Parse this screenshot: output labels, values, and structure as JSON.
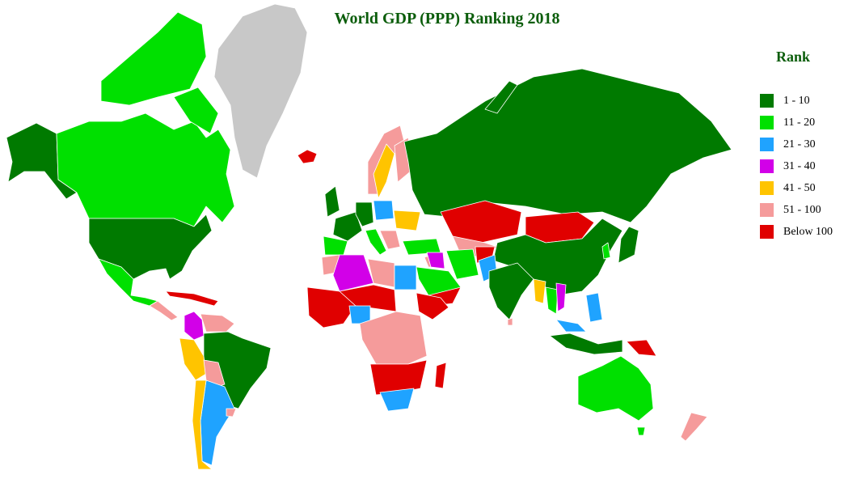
{
  "title": "World GDP (PPP) Ranking 2018",
  "legend": {
    "title": "Rank",
    "items": [
      {
        "label": "1 - 10",
        "color": "#007a00"
      },
      {
        "label": "11 - 20",
        "color": "#00e000"
      },
      {
        "label": "21 - 30",
        "color": "#1fa3ff"
      },
      {
        "label": "31 - 40",
        "color": "#d200e8"
      },
      {
        "label": "41 - 50",
        "color": "#ffc400"
      },
      {
        "label": "51 - 100",
        "color": "#f59b9b"
      },
      {
        "label": "Below 100",
        "color": "#e00000"
      }
    ]
  },
  "colors": {
    "no_data": "#c8c8c8",
    "border": "#ffffff",
    "background": "#ffffff"
  },
  "regions": [
    {
      "name": "United States",
      "rank_band": "1 - 10"
    },
    {
      "name": "Canada",
      "rank_band": "11 - 20"
    },
    {
      "name": "Alaska",
      "rank_band": "1 - 10"
    },
    {
      "name": "Mexico",
      "rank_band": "11 - 20"
    },
    {
      "name": "Greenland",
      "rank_band": "no data"
    },
    {
      "name": "Brazil",
      "rank_band": "1 - 10"
    },
    {
      "name": "Argentina",
      "rank_band": "21 - 30"
    },
    {
      "name": "Russia",
      "rank_band": "1 - 10"
    },
    {
      "name": "China",
      "rank_band": "1 - 10"
    },
    {
      "name": "India",
      "rank_band": "1 - 10"
    },
    {
      "name": "Australia",
      "rank_band": "11 - 20"
    },
    {
      "name": "Japan",
      "rank_band": "1 - 10"
    },
    {
      "name": "Kazakhstan",
      "rank_band": "Below 100"
    },
    {
      "name": "Mongolia",
      "rank_band": "Below 100"
    },
    {
      "name": "Saudi Arabia",
      "rank_band": "11 - 20"
    },
    {
      "name": "Egypt",
      "rank_band": "21 - 30"
    },
    {
      "name": "Algeria",
      "rank_band": "31 - 40"
    },
    {
      "name": "Nigeria",
      "rank_band": "21 - 30"
    },
    {
      "name": "South Africa",
      "rank_band": "21 - 30"
    },
    {
      "name": "Colombia",
      "rank_band": "31 - 40"
    },
    {
      "name": "Peru",
      "rank_band": "41 - 50"
    },
    {
      "name": "Chile",
      "rank_band": "41 - 50"
    },
    {
      "name": "Iran",
      "rank_band": "11 - 20"
    },
    {
      "name": "Pakistan",
      "rank_band": "21 - 30"
    },
    {
      "name": "Indonesia",
      "rank_band": "1 - 10"
    },
    {
      "name": "Thailand",
      "rank_band": "11 - 20"
    },
    {
      "name": "Philippines",
      "rank_band": "21 - 30"
    },
    {
      "name": "Madagascar",
      "rank_band": "Below 100"
    },
    {
      "name": "Papua New Guinea",
      "rank_band": "Below 100"
    },
    {
      "name": "New Zealand",
      "rank_band": "51 - 100"
    },
    {
      "name": "Sweden",
      "rank_band": "41 - 50"
    },
    {
      "name": "Iceland",
      "rank_band": "Below 100"
    },
    {
      "name": "Turkey",
      "rank_band": "11 - 20"
    },
    {
      "name": "Spain",
      "rank_band": "11 - 20"
    },
    {
      "name": "France",
      "rank_band": "1 - 10"
    },
    {
      "name": "Germany",
      "rank_band": "1 - 10"
    }
  ]
}
